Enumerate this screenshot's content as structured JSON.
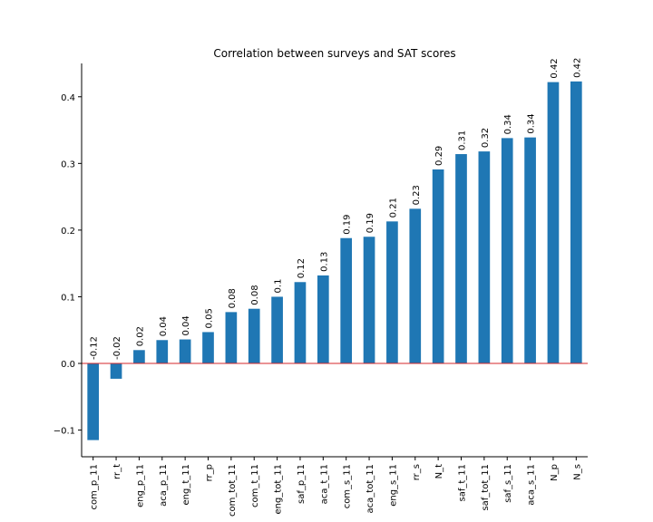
{
  "chart_data": {
    "type": "bar",
    "title": "Correlation between surveys and SAT scores",
    "xlabel": "",
    "ylabel": "",
    "ylim": [
      -0.14,
      0.45
    ],
    "yticks": [
      -0.1,
      0.0,
      0.1,
      0.2,
      0.3,
      0.4
    ],
    "ytick_labels": [
      "−0.1",
      "0.0",
      "0.1",
      "0.2",
      "0.3",
      "0.4"
    ],
    "categories": [
      "com_p_11",
      "rr_t",
      "eng_p_11",
      "aca_p_11",
      "eng_t_11",
      "rr_p",
      "com_tot_11",
      "com_t_11",
      "eng_tot_11",
      "saf_p_11",
      "aca_t_11",
      "com_s_11",
      "aca_tot_11",
      "eng_s_11",
      "rr_s",
      "N_t",
      "saf_t_11",
      "saf_tot_11",
      "saf_s_11",
      "aca_s_11",
      "N_p",
      "N_s"
    ],
    "values": [
      -0.115,
      -0.023,
      0.02,
      0.035,
      0.036,
      0.047,
      0.077,
      0.082,
      0.1,
      0.122,
      0.132,
      0.188,
      0.19,
      0.213,
      0.232,
      0.291,
      0.314,
      0.318,
      0.338,
      0.339,
      0.422,
      0.423
    ],
    "data_labels": [
      "-0.12",
      "-0.02",
      "0.02",
      "0.04",
      "0.04",
      "0.05",
      "0.08",
      "0.08",
      "0.1",
      "0.12",
      "0.13",
      "0.19",
      "0.19",
      "0.21",
      "0.23",
      "0.29",
      "0.31",
      "0.32",
      "0.34",
      "0.34",
      "0.42",
      "0.42"
    ],
    "bar_color": "#1f77b4",
    "zero_line_color": "#d62728",
    "grid": false
  }
}
